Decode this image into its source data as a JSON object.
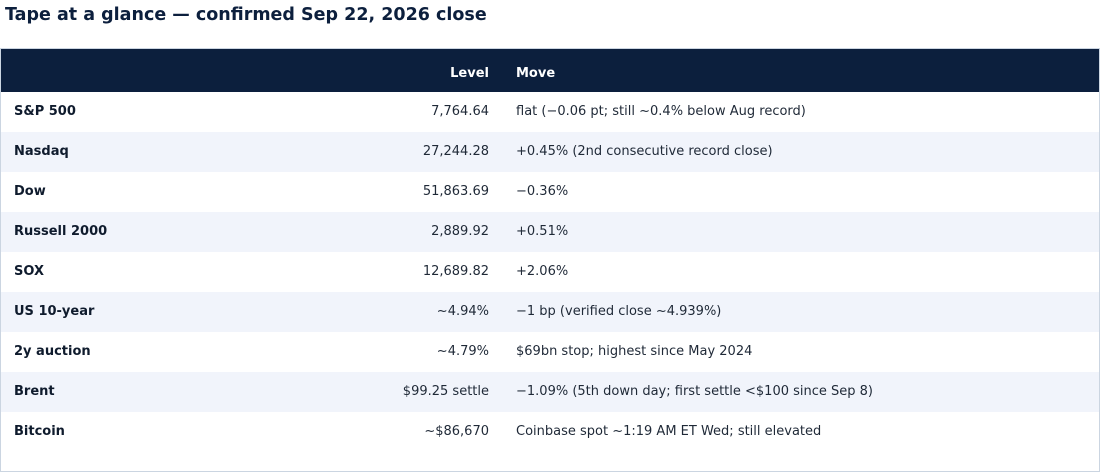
{
  "title": "Tape at a glance — confirmed Sep 22, 2026 close",
  "table": {
    "headers": {
      "name": "",
      "level": "Level",
      "move": "Move"
    },
    "rows": [
      {
        "name": "S&P 500",
        "level": "7,764.64",
        "move": "flat (−0.06 pt; still ~0.4% below Aug record)"
      },
      {
        "name": "Nasdaq",
        "level": "27,244.28",
        "move": "+0.45% (2nd consecutive record close)"
      },
      {
        "name": "Dow",
        "level": "51,863.69",
        "move": "−0.36%"
      },
      {
        "name": "Russell 2000",
        "level": "2,889.92",
        "move": "+0.51%"
      },
      {
        "name": "SOX",
        "level": "12,689.82",
        "move": "+2.06%"
      },
      {
        "name": "US 10-year",
        "level": "~4.94%",
        "move": "−1 bp (verified close ~4.939%)"
      },
      {
        "name": "2y auction",
        "level": "~4.79%",
        "move": "$69bn stop; highest since May 2024"
      },
      {
        "name": "Brent",
        "level": "$99.25 settle",
        "move": "−1.09% (5th down day; first settle <$100 since Sep 8)"
      },
      {
        "name": "Bitcoin",
        "level": "~$86,670",
        "move": "Coinbase spot ~1:19 AM ET Wed; still elevated"
      }
    ]
  },
  "colors": {
    "header_bg": "#0c1f3d",
    "stripe_bg": "#f1f4fb",
    "title_text": "#0c1f3d"
  }
}
